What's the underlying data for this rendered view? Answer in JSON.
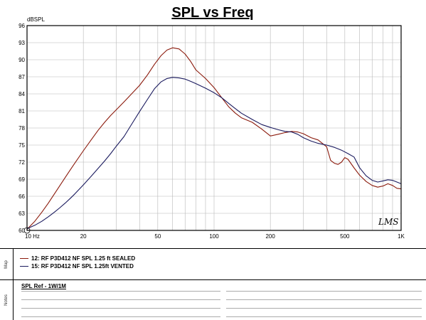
{
  "chart_data": {
    "type": "line",
    "title": "SPL vs Freq",
    "ylabel": "dBSPL",
    "xlabel": "",
    "xscale": "log",
    "xlim": [
      10,
      1000
    ],
    "ylim": [
      60,
      96
    ],
    "x_tick_labels": [
      "10 Hz",
      "20",
      "50",
      "100",
      "200",
      "500",
      "1K"
    ],
    "x_tick_values": [
      10,
      20,
      50,
      100,
      200,
      500,
      1000
    ],
    "y_ticks": [
      60,
      63,
      66,
      69,
      72,
      75,
      78,
      81,
      84,
      87,
      90,
      93,
      96
    ],
    "grid": true,
    "series": [
      {
        "name": "12: RF P3D412 NF SPL 1.25 ft SEALED",
        "color": "#8b1a0c",
        "points": [
          [
            10,
            60.2
          ],
          [
            11,
            61.6
          ],
          [
            12,
            63.2
          ],
          [
            13,
            64.8
          ],
          [
            14,
            66.4
          ],
          [
            15,
            67.9
          ],
          [
            16,
            69.3
          ],
          [
            17,
            70.6
          ],
          [
            18,
            71.8
          ],
          [
            20,
            74.0
          ],
          [
            22,
            75.9
          ],
          [
            24,
            77.6
          ],
          [
            26,
            79.0
          ],
          [
            28,
            80.2
          ],
          [
            30,
            81.2
          ],
          [
            33,
            82.6
          ],
          [
            36,
            83.9
          ],
          [
            40,
            85.5
          ],
          [
            44,
            87.3
          ],
          [
            48,
            89.2
          ],
          [
            52,
            90.7
          ],
          [
            56,
            91.7
          ],
          [
            60,
            92.1
          ],
          [
            65,
            91.9
          ],
          [
            70,
            91.0
          ],
          [
            75,
            89.7
          ],
          [
            80,
            88.2
          ],
          [
            90,
            86.7
          ],
          [
            100,
            85.1
          ],
          [
            110,
            83.3
          ],
          [
            120,
            81.7
          ],
          [
            130,
            80.6
          ],
          [
            140,
            79.8
          ],
          [
            160,
            79.0
          ],
          [
            180,
            77.8
          ],
          [
            200,
            76.6
          ],
          [
            220,
            76.9
          ],
          [
            240,
            77.2
          ],
          [
            260,
            77.4
          ],
          [
            280,
            77.3
          ],
          [
            300,
            77.0
          ],
          [
            330,
            76.3
          ],
          [
            360,
            75.9
          ],
          [
            400,
            74.7
          ],
          [
            420,
            72.3
          ],
          [
            440,
            71.8
          ],
          [
            460,
            71.6
          ],
          [
            480,
            72.0
          ],
          [
            500,
            72.8
          ],
          [
            520,
            72.5
          ],
          [
            560,
            71.0
          ],
          [
            600,
            69.7
          ],
          [
            650,
            68.6
          ],
          [
            700,
            67.9
          ],
          [
            750,
            67.6
          ],
          [
            800,
            67.8
          ],
          [
            850,
            68.2
          ],
          [
            900,
            67.9
          ],
          [
            950,
            67.4
          ],
          [
            1000,
            67.3
          ]
        ]
      },
      {
        "name": "15: RF P3D412 NF SPL 1.25ft VENTED",
        "color": "#1a1a5e",
        "points": [
          [
            10,
            60.3
          ],
          [
            11,
            60.9
          ],
          [
            12,
            61.6
          ],
          [
            13,
            62.4
          ],
          [
            14,
            63.2
          ],
          [
            15,
            64.0
          ],
          [
            16,
            64.8
          ],
          [
            17,
            65.6
          ],
          [
            18,
            66.4
          ],
          [
            20,
            68.0
          ],
          [
            22,
            69.5
          ],
          [
            24,
            70.9
          ],
          [
            26,
            72.2
          ],
          [
            28,
            73.5
          ],
          [
            30,
            74.8
          ],
          [
            33,
            76.5
          ],
          [
            36,
            78.5
          ],
          [
            40,
            80.9
          ],
          [
            44,
            83.0
          ],
          [
            48,
            84.9
          ],
          [
            52,
            86.1
          ],
          [
            56,
            86.7
          ],
          [
            60,
            86.9
          ],
          [
            65,
            86.8
          ],
          [
            70,
            86.6
          ],
          [
            75,
            86.2
          ],
          [
            80,
            85.8
          ],
          [
            90,
            85.0
          ],
          [
            100,
            84.2
          ],
          [
            110,
            83.3
          ],
          [
            120,
            82.3
          ],
          [
            130,
            81.4
          ],
          [
            140,
            80.6
          ],
          [
            160,
            79.5
          ],
          [
            180,
            78.6
          ],
          [
            200,
            78.1
          ],
          [
            220,
            77.7
          ],
          [
            240,
            77.4
          ],
          [
            260,
            77.3
          ],
          [
            280,
            76.9
          ],
          [
            300,
            76.3
          ],
          [
            330,
            75.7
          ],
          [
            360,
            75.3
          ],
          [
            400,
            75.0
          ],
          [
            440,
            74.6
          ],
          [
            480,
            74.1
          ],
          [
            520,
            73.5
          ],
          [
            560,
            72.9
          ],
          [
            600,
            71.0
          ],
          [
            650,
            69.6
          ],
          [
            700,
            68.8
          ],
          [
            750,
            68.5
          ],
          [
            800,
            68.7
          ],
          [
            850,
            68.9
          ],
          [
            900,
            68.8
          ],
          [
            950,
            68.5
          ],
          [
            1000,
            68.2
          ]
        ]
      }
    ]
  },
  "logo_text": "LMS",
  "map_panel": {
    "side_label": "Map",
    "legend": [
      "12: RF P3D412 NF SPL 1.25 ft SEALED",
      "15: RF P3D412 NF SPL 1.25ft VENTED"
    ]
  },
  "notes_panel": {
    "side_label": "Notes",
    "title": "SPL Ref - 1W/1M"
  }
}
